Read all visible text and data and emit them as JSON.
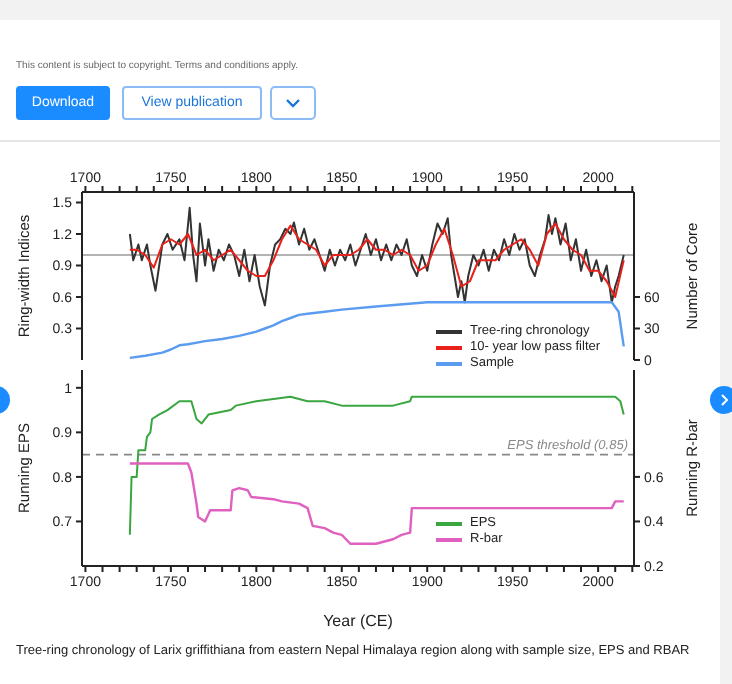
{
  "chart_data": [
    {
      "type": "line",
      "ylabel": "Ring-width Indices",
      "y2label": "Number of Core",
      "annotations": [
        "This content is subject to copyright. Terms and conditions apply.",
        "Download",
        "View publication"
      ],
      "xlim": [
        1698,
        2021
      ],
      "xticks": [
        1700,
        {
          "value": 1710,
          "label": null
        },
        {
          "value": 1720,
          "label": null
        },
        {
          "value": 1730,
          "label": null
        },
        {
          "value": 1740,
          "label": null
        },
        1750,
        {
          "value": 1760,
          "label": null
        },
        {
          "value": 1770,
          "label": null
        },
        {
          "value": 1780,
          "label": null
        },
        {
          "value": 1790,
          "label": null
        },
        1800,
        {
          "value": 1810,
          "label": null
        },
        {
          "value": 1820,
          "label": null
        },
        {
          "value": 1830,
          "label": null
        },
        {
          "value": 1840,
          "label": null
        },
        1850,
        {
          "value": 1860,
          "label": null
        },
        {
          "value": 1870,
          "label": null
        },
        {
          "value": 1880,
          "label": null
        },
        {
          "value": 1890,
          "label": null
        },
        1900,
        {
          "value": 1910,
          "label": null
        },
        {
          "value": 1920,
          "label": null
        },
        {
          "value": 1930,
          "label": null
        },
        {
          "value": 1940,
          "label": null
        },
        1950,
        {
          "value": 1960,
          "label": null
        },
        {
          "value": 1970,
          "label": null
        },
        {
          "value": 1980,
          "label": null
        },
        {
          "value": 1990,
          "label": null
        },
        2000,
        {
          "value": 2010,
          "label": null
        },
        {
          "value": 2020,
          "label": null
        }
      ],
      "ylim": [
        0,
        1.6
      ],
      "yticks": [
        0.3,
        0.6,
        0.9,
        1.2,
        1.5
      ],
      "y2lim": [
        0,
        160
      ],
      "y2ticks": [
        0,
        30,
        60
      ],
      "ref_lines": [
        {
          "axis": "y",
          "value": 1,
          "color": "#9a9a9a"
        }
      ],
      "legend": "bottom right",
      "grid": false,
      "marker": "none",
      "line_style": "solid",
      "series": [
        {
          "name": "Tree-ring chronology",
          "color": "#333333",
          "x": [
            1726,
            1728,
            1731,
            1733,
            1736,
            1738,
            1741,
            1745,
            1748,
            1751,
            1755,
            1758,
            1761,
            1763,
            1765,
            1767,
            1770,
            1772,
            1775,
            1778,
            1781,
            1784,
            1787,
            1790,
            1793,
            1796,
            1799,
            1802,
            1805,
            1808,
            1811,
            1814,
            1817,
            1820,
            1822,
            1825,
            1828,
            1831,
            1834,
            1837,
            1840,
            1843,
            1846,
            1849,
            1852,
            1855,
            1858,
            1861,
            1864,
            1867,
            1870,
            1873,
            1876,
            1879,
            1882,
            1885,
            1888,
            1891,
            1894,
            1897,
            1900,
            1903,
            1906,
            1909,
            1912,
            1914,
            1916,
            1918,
            1920,
            1922,
            1924,
            1927,
            1930,
            1933,
            1936,
            1939,
            1942,
            1945,
            1948,
            1951,
            1954,
            1957,
            1960,
            1963,
            1966,
            1969,
            1971,
            1973,
            1975,
            1978,
            1981,
            1984,
            1987,
            1990,
            1993,
            1996,
            1999,
            2002,
            2005,
            2008,
            2010,
            2012,
            2015
          ],
          "values": [
            1.2,
            0.95,
            1.1,
            0.95,
            1.1,
            0.9,
            0.66,
            1.1,
            1.2,
            1.05,
            1.15,
            0.95,
            1.45,
            1.0,
            0.75,
            1.3,
            0.9,
            1.15,
            0.85,
            1.05,
            0.95,
            1.1,
            1.0,
            0.8,
            1.05,
            0.75,
            1.0,
            0.7,
            0.52,
            0.9,
            1.1,
            1.15,
            1.25,
            1.2,
            1.31,
            1.1,
            1.25,
            1.05,
            1.15,
            1.0,
            0.85,
            1.05,
            0.9,
            1.05,
            0.95,
            1.1,
            0.9,
            1.05,
            1.2,
            1.0,
            1.15,
            0.95,
            1.1,
            0.95,
            1.1,
            1.0,
            1.15,
            0.9,
            0.8,
            1.0,
            0.85,
            1.1,
            1.3,
            1.2,
            1.35,
            1.0,
            0.8,
            0.6,
            0.75,
            0.55,
            0.8,
            1.0,
            0.9,
            1.05,
            0.85,
            1.05,
            0.95,
            1.15,
            1.0,
            1.2,
            1.05,
            1.15,
            0.9,
            0.8,
            1.0,
            1.15,
            1.38,
            1.2,
            1.35,
            1.1,
            1.3,
            0.95,
            1.15,
            0.85,
            1.05,
            0.8,
            0.95,
            0.75,
            0.9,
            0.55,
            0.7,
            0.8,
            1.0
          ]
        },
        {
          "name": "10- year low pass filter",
          "color": "#e8221b",
          "x": [
            1726,
            1730,
            1735,
            1740,
            1745,
            1750,
            1755,
            1760,
            1765,
            1770,
            1775,
            1780,
            1785,
            1790,
            1795,
            1800,
            1805,
            1810,
            1815,
            1820,
            1825,
            1830,
            1835,
            1840,
            1845,
            1850,
            1855,
            1860,
            1865,
            1870,
            1875,
            1880,
            1885,
            1890,
            1895,
            1900,
            1905,
            1910,
            1915,
            1920,
            1925,
            1930,
            1935,
            1940,
            1945,
            1950,
            1955,
            1960,
            1965,
            1970,
            1975,
            1980,
            1985,
            1990,
            1995,
            2000,
            2005,
            2010,
            2015
          ],
          "values": [
            1.05,
            1.05,
            1.0,
            0.88,
            1.1,
            1.15,
            1.1,
            1.2,
            1.0,
            1.05,
            0.95,
            1.0,
            1.05,
            0.95,
            0.85,
            0.8,
            0.8,
            0.95,
            1.15,
            1.28,
            1.15,
            1.1,
            1.05,
            0.9,
            1.0,
            1.0,
            1.0,
            1.05,
            1.15,
            1.05,
            1.05,
            1.0,
            1.05,
            1.0,
            0.85,
            0.9,
            1.1,
            1.25,
            1.0,
            0.7,
            0.75,
            0.95,
            0.95,
            0.95,
            1.05,
            1.1,
            1.15,
            1.05,
            0.9,
            1.2,
            1.3,
            1.15,
            1.05,
            1.0,
            0.85,
            0.85,
            0.75,
            0.6,
            0.95
          ]
        },
        {
          "name": "Sample",
          "color": "#5b9cf0",
          "axis": "y2",
          "x": [
            1726,
            1735,
            1745,
            1750,
            1755,
            1760,
            1770,
            1780,
            1790,
            1800,
            1805,
            1810,
            1815,
            1820,
            1825,
            1830,
            1840,
            1850,
            1870,
            1900,
            2008,
            2012,
            2015
          ],
          "values": [
            2,
            4,
            7,
            10,
            14,
            15,
            18,
            20,
            23,
            27,
            30,
            33,
            37,
            40,
            43,
            44,
            46,
            48,
            51,
            55,
            55,
            46,
            13
          ]
        }
      ]
    },
    {
      "type": "line",
      "xlabel": "Year (CE)",
      "ylabel": "Running EPS",
      "y2label": "Running R-bar",
      "annotations": [
        "Tree-ring chronology of Larix griffithiana from eastern Nepal Himalaya region along with sample size, EPS and RBAR"
      ],
      "xlim": [
        1698,
        2021
      ],
      "xticks": [
        1700,
        {
          "value": 1710,
          "label": null
        },
        {
          "value": 1720,
          "label": null
        },
        {
          "value": 1730,
          "label": null
        },
        {
          "value": 1740,
          "label": null
        },
        1750,
        {
          "value": 1760,
          "label": null
        },
        {
          "value": 1770,
          "label": null
        },
        {
          "value": 1780,
          "label": null
        },
        {
          "value": 1790,
          "label": null
        },
        1800,
        {
          "value": 1810,
          "label": null
        },
        {
          "value": 1820,
          "label": null
        },
        {
          "value": 1830,
          "label": null
        },
        {
          "value": 1840,
          "label": null
        },
        1850,
        {
          "value": 1860,
          "label": null
        },
        {
          "value": 1870,
          "label": null
        },
        {
          "value": 1880,
          "label": null
        },
        {
          "value": 1890,
          "label": null
        },
        1900,
        {
          "value": 1910,
          "label": null
        },
        {
          "value": 1920,
          "label": null
        },
        {
          "value": 1930,
          "label": null
        },
        {
          "value": 1940,
          "label": null
        },
        1950,
        {
          "value": 1960,
          "label": null
        },
        {
          "value": 1970,
          "label": null
        },
        {
          "value": 1980,
          "label": null
        },
        {
          "value": 1990,
          "label": null
        },
        2000,
        {
          "value": 2010,
          "label": null
        },
        {
          "value": 2020,
          "label": null
        }
      ],
      "ylim": [
        0.6,
        1.04
      ],
      "yticks": [
        0.7,
        0.8,
        0.9,
        1
      ],
      "y2lim": [
        0.2,
        1.08
      ],
      "y2ticks": [
        0.2,
        0.4,
        0.6
      ],
      "ref_lines": [
        {
          "axis": "y",
          "value": 0.85,
          "label": "EPS threshold (0.85)",
          "color": "#888888",
          "line_style": "dashed"
        }
      ],
      "legend": "bottom right",
      "grid": false,
      "marker": "none",
      "line_style": "solid",
      "series": [
        {
          "name": "EPS",
          "color": "#3aa640",
          "x": [
            1726,
            1727,
            1730,
            1731,
            1735,
            1736,
            1738,
            1739,
            1743,
            1748,
            1755,
            1762,
            1765,
            1768,
            1772,
            1785,
            1788,
            1800,
            1820,
            1830,
            1840,
            1850,
            1860,
            1880,
            1890,
            1891,
            2000,
            2010,
            2013,
            2015
          ],
          "values": [
            0.67,
            0.8,
            0.8,
            0.86,
            0.86,
            0.89,
            0.9,
            0.93,
            0.94,
            0.95,
            0.97,
            0.97,
            0.93,
            0.92,
            0.94,
            0.95,
            0.96,
            0.97,
            0.98,
            0.97,
            0.97,
            0.96,
            0.96,
            0.96,
            0.97,
            0.98,
            0.98,
            0.98,
            0.97,
            0.94
          ]
        },
        {
          "name": "R-bar",
          "color": "#e060c0",
          "axis": "y2",
          "x": [
            1726,
            1760,
            1762,
            1765,
            1766,
            1770,
            1773,
            1785,
            1786,
            1790,
            1795,
            1797,
            1810,
            1815,
            1825,
            1830,
            1833,
            1840,
            1845,
            1850,
            1855,
            1870,
            1880,
            1885,
            1890,
            1891,
            2008,
            2010,
            2015
          ],
          "values": [
            0.66,
            0.66,
            0.62,
            0.48,
            0.42,
            0.4,
            0.45,
            0.45,
            0.54,
            0.55,
            0.54,
            0.51,
            0.5,
            0.49,
            0.48,
            0.46,
            0.38,
            0.37,
            0.35,
            0.34,
            0.3,
            0.3,
            0.32,
            0.34,
            0.35,
            0.46,
            0.46,
            0.49,
            0.49
          ]
        }
      ]
    }
  ]
}
